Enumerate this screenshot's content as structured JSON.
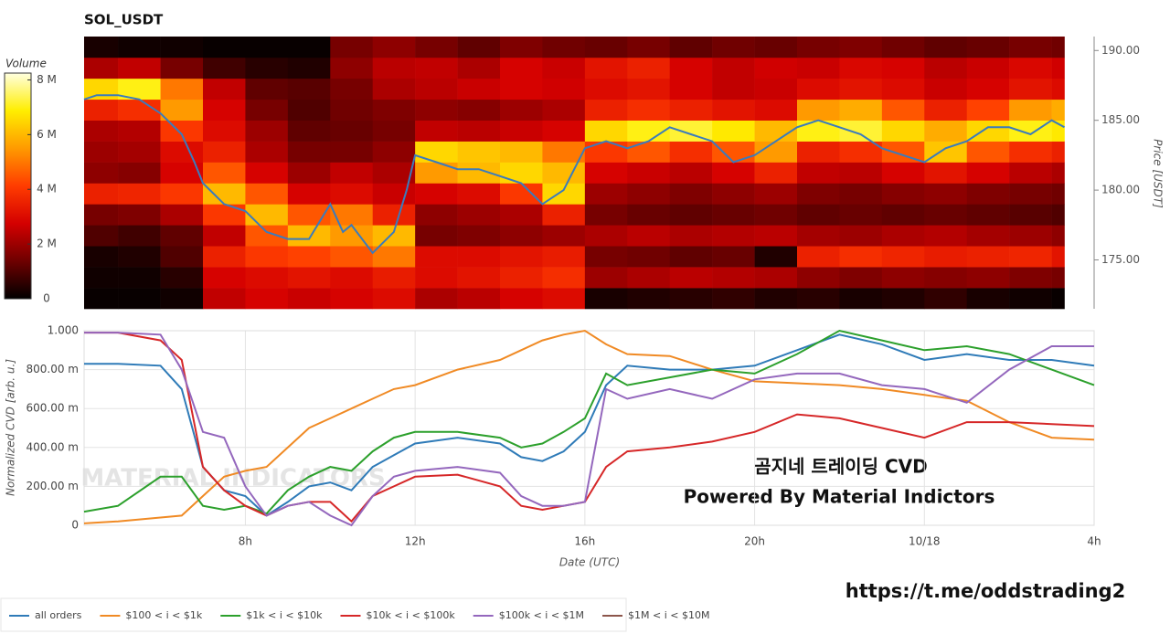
{
  "chart_data": [
    {
      "type": "heatmap",
      "title": "SOL_USDT",
      "xlim": [
        4.2,
        28
      ],
      "xbins": [
        4.2,
        5,
        6,
        7,
        8,
        9,
        10,
        11,
        12,
        13,
        14,
        15,
        16,
        17,
        18,
        19,
        20,
        21,
        22,
        23,
        24,
        25,
        26,
        27,
        27.3
      ],
      "ylim": [
        171.5,
        191
      ],
      "ybins": [
        171.5,
        173,
        174.5,
        176,
        177.5,
        179,
        180.5,
        182,
        183.5,
        185,
        186.5,
        188,
        189.5,
        191
      ],
      "yticks": [
        {
          "value": 175,
          "label": "175.00"
        },
        {
          "value": 180,
          "label": "180.00"
        },
        {
          "value": 185,
          "label": "185.00"
        },
        {
          "value": 190,
          "label": "190.00"
        }
      ],
      "ylabel": "Price [USDT]",
      "z": [
        [
          0.1,
          0.1,
          0.2,
          2.5,
          2.8,
          2.6,
          2.8,
          3,
          2.2,
          2.4,
          2.8,
          3,
          0.3,
          0.4,
          0.5,
          0.6,
          0.4,
          0.5,
          0.3,
          0.4,
          0.6,
          0.3,
          0.2,
          0.1
        ],
        [
          0.2,
          0.2,
          0.5,
          2.8,
          3,
          3.2,
          3,
          3.4,
          3,
          3.2,
          3.5,
          3.8,
          2,
          2.2,
          2.4,
          2.3,
          2.2,
          1.8,
          1.6,
          1.8,
          1.7,
          1.8,
          1.6,
          1.5
        ],
        [
          0.3,
          0.4,
          1,
          3.5,
          4,
          4.2,
          4.5,
          5,
          3,
          3,
          3.2,
          3.4,
          1.5,
          1.4,
          1.2,
          1.3,
          0.4,
          3.5,
          3.8,
          3.6,
          3.4,
          3.5,
          3.6,
          3.2
        ],
        [
          1,
          0.8,
          1.2,
          2.5,
          4.5,
          6,
          5.5,
          6,
          1.5,
          1.6,
          1.8,
          2,
          2.2,
          2.4,
          2.2,
          2.3,
          2.4,
          2.1,
          2,
          2.2,
          2.3,
          2.1,
          2,
          1.8
        ],
        [
          1.5,
          1.6,
          2.2,
          4,
          6,
          4.5,
          5,
          3.5,
          1.8,
          2,
          2.2,
          3.5,
          1.5,
          1.3,
          1.2,
          1.3,
          1.4,
          1.2,
          1.3,
          1.2,
          1.3,
          1.2,
          1.1,
          1
        ],
        [
          3.5,
          3.6,
          4,
          6,
          4.5,
          2.8,
          3,
          2.6,
          2.8,
          3,
          4,
          6.5,
          2,
          1.8,
          1.6,
          1.8,
          2,
          1.6,
          1.5,
          1.7,
          1.8,
          1.6,
          1.5,
          1.4
        ],
        [
          1.8,
          1.7,
          2.8,
          4.5,
          2.8,
          2,
          2.5,
          2.2,
          5.5,
          6,
          6.5,
          6,
          2.8,
          2.6,
          2.4,
          2.8,
          3.5,
          2.5,
          2.4,
          2.8,
          3.2,
          2.8,
          2.4,
          2.2
        ],
        [
          2,
          2.1,
          3,
          3.5,
          2.2,
          1.5,
          1.5,
          1.8,
          6.5,
          6.2,
          6,
          5,
          4,
          4.5,
          3.8,
          4.5,
          5.5,
          3.5,
          3.8,
          4.5,
          6.2,
          4.5,
          3.8,
          3.5
        ],
        [
          2.2,
          2.3,
          4,
          3,
          2,
          1.2,
          1.3,
          1.5,
          2.5,
          2.4,
          2.6,
          2.8,
          6.5,
          7,
          7.2,
          6.8,
          6,
          7,
          7.2,
          6.5,
          5.8,
          6.5,
          7,
          6.8
        ],
        [
          3.5,
          3.8,
          5.5,
          2.8,
          1.5,
          1,
          1.4,
          1.6,
          1.8,
          1.7,
          2,
          2.2,
          3.5,
          3.8,
          3.5,
          3.2,
          3,
          5.5,
          5.8,
          4.5,
          3.5,
          4.2,
          5.5,
          5.8
        ],
        [
          6.5,
          7,
          5,
          2.5,
          1.2,
          1.1,
          1.5,
          2.2,
          2.4,
          2.6,
          2.8,
          2.7,
          3,
          3.2,
          2.8,
          2.5,
          2.6,
          3,
          3.2,
          3,
          2.6,
          2.8,
          3.2,
          3
        ],
        [
          2.2,
          2.5,
          1.5,
          0.8,
          0.5,
          0.4,
          1.8,
          2.4,
          2.5,
          2.2,
          2.8,
          2.6,
          3.2,
          3.5,
          2.8,
          2.5,
          2.7,
          2.6,
          2.9,
          2.8,
          2.4,
          2.6,
          2.9,
          2.7
        ],
        [
          0.3,
          0.2,
          0.2,
          0.1,
          0.1,
          0.1,
          1.5,
          1.8,
          1.5,
          1.2,
          1.6,
          1.4,
          1.3,
          1.5,
          1.2,
          1.4,
          1.3,
          1.5,
          1.6,
          1.4,
          1.2,
          1.3,
          1.5,
          1.4
        ]
      ],
      "zlim": [
        0,
        8.25
      ],
      "colorscale": [
        "#000000",
        "#6e0000",
        "#d40000",
        "#ff3c00",
        "#ff9a00",
        "#ffee00",
        "#ffffe0"
      ],
      "colorbar_title": "Volume",
      "colorbar_ticks": [
        0,
        {
          "value": 2,
          "label": "2 M"
        },
        {
          "value": 4,
          "label": "4 M"
        },
        {
          "value": 6,
          "label": "6 M"
        },
        {
          "value": 8,
          "label": "8 M"
        }
      ],
      "line": {
        "color": "#3a7bbd",
        "x": [
          4.2,
          4.5,
          5,
          5.5,
          6,
          6.5,
          6.8,
          7,
          7.5,
          8,
          8.5,
          9,
          9.5,
          10,
          10.3,
          10.5,
          11,
          11.5,
          11.8,
          12,
          12.5,
          13,
          13.5,
          14,
          14.5,
          15,
          15.5,
          16,
          16.5,
          17,
          17.5,
          18,
          18.5,
          19,
          19.5,
          20,
          20.5,
          21,
          21.5,
          22,
          22.5,
          23,
          23.5,
          24,
          24.5,
          25,
          25.5,
          26,
          26.5,
          27,
          27.3
        ],
        "values": [
          186.5,
          186.8,
          186.8,
          186.5,
          185.5,
          184,
          182,
          180.5,
          179,
          178.5,
          177,
          176.5,
          176.5,
          179,
          177,
          177.5,
          175.5,
          177,
          180,
          182.5,
          182,
          181.5,
          181.5,
          181,
          180.5,
          179,
          180,
          183,
          183.5,
          183,
          183.5,
          184.5,
          184,
          183.5,
          182,
          182.5,
          183.5,
          184.5,
          185,
          184.5,
          184,
          183,
          182.5,
          182,
          183,
          183.5,
          184.5,
          184.5,
          184,
          185,
          184.5
        ]
      }
    },
    {
      "type": "line",
      "xlabel": "Date (UTC)",
      "ylabel": "Normalized CVD [arb. u.]",
      "grid": true,
      "xlim": [
        4.2,
        28
      ],
      "xticks": [
        {
          "value": 8,
          "label": "8h"
        },
        {
          "value": 12,
          "label": "12h"
        },
        {
          "value": 16,
          "label": "16h"
        },
        {
          "value": 20,
          "label": "20h"
        },
        {
          "value": 24,
          "label": "10/18"
        },
        {
          "value": 28,
          "label": "4h"
        }
      ],
      "ylim": [
        0,
        1
      ],
      "yticks": [
        0,
        {
          "value": 0.2,
          "label": "200.00 m"
        },
        {
          "value": 0.4,
          "label": "400.00 m"
        },
        {
          "value": 0.6,
          "label": "600.00 m"
        },
        {
          "value": 0.8,
          "label": "800.00 m"
        },
        {
          "value": 1,
          "label": "1.000"
        }
      ],
      "x": [
        4.2,
        5,
        6,
        6.5,
        7,
        7.5,
        8,
        8.5,
        9,
        9.5,
        10,
        10.5,
        11,
        11.5,
        12,
        13,
        14,
        14.5,
        15,
        15.5,
        16,
        16.5,
        17,
        18,
        19,
        20,
        21,
        22,
        23,
        24,
        25,
        26,
        27,
        28
      ],
      "series": [
        {
          "name": "all orders",
          "color": "#2f7bb8",
          "values": [
            0.83,
            0.83,
            0.82,
            0.7,
            0.3,
            0.18,
            0.15,
            0.05,
            0.12,
            0.2,
            0.22,
            0.18,
            0.3,
            0.36,
            0.42,
            0.45,
            0.42,
            0.35,
            0.33,
            0.38,
            0.48,
            0.72,
            0.82,
            0.8,
            0.8,
            0.82,
            0.9,
            0.98,
            0.93,
            0.85,
            0.88,
            0.85,
            0.85,
            0.82
          ]
        },
        {
          "name": "$100 < i < $1k",
          "color": "#f08a24",
          "values": [
            0.01,
            0.02,
            0.04,
            0.05,
            0.15,
            0.25,
            0.28,
            0.3,
            0.4,
            0.5,
            0.55,
            0.6,
            0.65,
            0.7,
            0.72,
            0.8,
            0.85,
            0.9,
            0.95,
            0.98,
            1.0,
            0.93,
            0.88,
            0.87,
            0.8,
            0.74,
            0.73,
            0.72,
            0.7,
            0.67,
            0.64,
            0.53,
            0.45,
            0.44
          ]
        },
        {
          "name": "$1k < i < $10k",
          "color": "#2ca02c",
          "values": [
            0.07,
            0.1,
            0.25,
            0.25,
            0.1,
            0.08,
            0.1,
            0.06,
            0.18,
            0.25,
            0.3,
            0.28,
            0.38,
            0.45,
            0.48,
            0.48,
            0.45,
            0.4,
            0.42,
            0.48,
            0.55,
            0.78,
            0.72,
            0.76,
            0.8,
            0.78,
            0.88,
            1.0,
            0.95,
            0.9,
            0.92,
            0.88,
            0.8,
            0.72
          ]
        },
        {
          "name": "$10k < i < $100k",
          "color": "#d62728",
          "values": [
            0.99,
            0.99,
            0.95,
            0.85,
            0.3,
            0.18,
            0.1,
            0.05,
            0.1,
            0.12,
            0.12,
            0.02,
            0.15,
            0.2,
            0.25,
            0.26,
            0.2,
            0.1,
            0.08,
            0.1,
            0.12,
            0.3,
            0.38,
            0.4,
            0.43,
            0.48,
            0.57,
            0.55,
            0.5,
            0.45,
            0.53,
            0.53,
            0.52,
            0.51
          ]
        },
        {
          "name": "$100k < i < $1M",
          "color": "#9467bd",
          "values": [
            0.99,
            0.99,
            0.98,
            0.8,
            0.48,
            0.45,
            0.2,
            0.05,
            0.1,
            0.12,
            0.05,
            0.0,
            0.15,
            0.25,
            0.28,
            0.3,
            0.27,
            0.15,
            0.1,
            0.1,
            0.12,
            0.7,
            0.65,
            0.7,
            0.65,
            0.75,
            0.78,
            0.78,
            0.72,
            0.7,
            0.63,
            0.8,
            0.92,
            0.92
          ]
        },
        {
          "name": "$1M < i < $10M",
          "color": "#8c564b",
          "values": [
            null,
            null,
            null,
            null,
            null,
            null,
            null,
            null,
            null,
            null,
            null,
            null,
            null,
            null,
            null,
            null,
            null,
            null,
            null,
            null,
            null,
            null,
            null,
            null,
            null,
            null,
            null,
            null,
            null,
            null,
            null,
            null,
            null,
            null
          ]
        }
      ],
      "watermark": "MATERIAL INDICATORS",
      "annotations": [
        "곰지네 트레이딩 CVD",
        "Powered By Material Indictors"
      ]
    }
  ],
  "footer": "https://t.me/oddstrading2"
}
